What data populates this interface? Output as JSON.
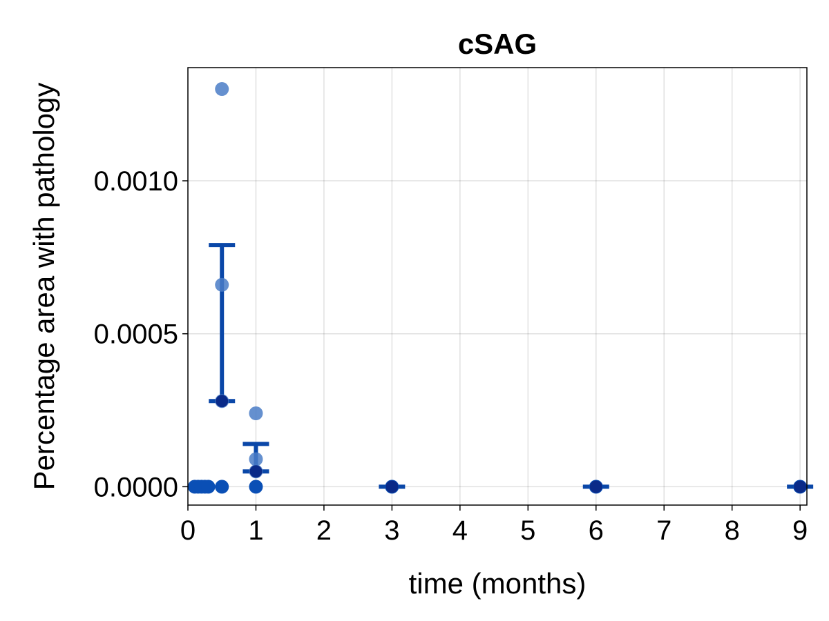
{
  "chart_data": {
    "type": "scatter",
    "title": "cSAG",
    "xlabel": "time (months)",
    "ylabel": "Percentage area with pathology",
    "xlim": [
      0,
      9.1
    ],
    "ylim": [
      -6e-05,
      0.00137
    ],
    "xticks": [
      0,
      1,
      2,
      3,
      4,
      5,
      6,
      7,
      8,
      9
    ],
    "xtick_labels": [
      "0",
      "1",
      "2",
      "3",
      "4",
      "5",
      "6",
      "7",
      "8",
      "9"
    ],
    "yticks": [
      0,
      0.0005,
      0.001
    ],
    "ytick_labels": [
      "0.0000",
      "0.0005",
      "0.0010"
    ],
    "grid": true,
    "colors": {
      "points": "#4a7cc7",
      "errorbar": "#0a47a8",
      "mean": "#0a2a88",
      "zero_points": "#0a4fb5"
    },
    "points": [
      {
        "x": 0.1,
        "y": 0
      },
      {
        "x": 0.15,
        "y": 0
      },
      {
        "x": 0.2,
        "y": 0
      },
      {
        "x": 0.25,
        "y": 0
      },
      {
        "x": 0.3,
        "y": 0
      },
      {
        "x": 0.5,
        "y": 0.0013
      },
      {
        "x": 0.5,
        "y": 0.00066
      },
      {
        "x": 0.5,
        "y": 0.00028
      },
      {
        "x": 0.5,
        "y": 0
      },
      {
        "x": 1,
        "y": 0.00024
      },
      {
        "x": 1,
        "y": 9e-05
      },
      {
        "x": 1,
        "y": 5e-05
      },
      {
        "x": 1,
        "y": 0
      },
      {
        "x": 3,
        "y": 0
      },
      {
        "x": 6,
        "y": 0
      },
      {
        "x": 9,
        "y": 0
      }
    ],
    "summary": [
      {
        "x": 0.5,
        "mean": 0.00028,
        "lower": 0.00028,
        "upper": 0.00079
      },
      {
        "x": 1,
        "mean": 5e-05,
        "lower": 5e-05,
        "upper": 0.00014
      },
      {
        "x": 3,
        "mean": 0,
        "lower": 0,
        "upper": 0
      },
      {
        "x": 6,
        "mean": 0,
        "lower": 0,
        "upper": 0
      },
      {
        "x": 9,
        "mean": 0,
        "lower": 0,
        "upper": 0
      }
    ]
  }
}
